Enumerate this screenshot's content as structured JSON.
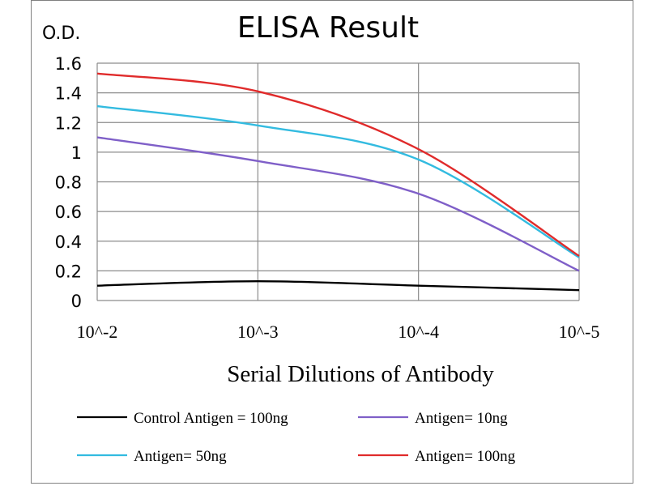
{
  "chart_data": {
    "type": "line",
    "title": "ELISA Result",
    "ylabel": "O.D.",
    "xlabel": "Serial Dilutions  of Antibody",
    "categories": [
      "10^-2",
      "10^-3",
      "10^-4",
      "10^-5"
    ],
    "ylim": [
      0,
      1.6
    ],
    "yticks": [
      0,
      0.2,
      0.4,
      0.6,
      0.8,
      1,
      1.2,
      1.4,
      1.6
    ],
    "ytick_labels": [
      "0",
      "0.2",
      "0.4",
      "0.6",
      "0.8",
      "1",
      "1.2",
      "1.4",
      "1.6"
    ],
    "grid": true,
    "legend_position": "bottom",
    "series": [
      {
        "name": "Control Antigen = 100ng",
        "color": "#000000",
        "values": [
          0.1,
          0.13,
          0.1,
          0.07
        ]
      },
      {
        "name": "Antigen= 10ng",
        "color": "#7f5fc8",
        "values": [
          1.1,
          0.94,
          0.72,
          0.2
        ]
      },
      {
        "name": "Antigen= 50ng",
        "color": "#33bbe0",
        "values": [
          1.31,
          1.18,
          0.95,
          0.29
        ]
      },
      {
        "name": "Antigen= 100ng",
        "color": "#e02b2b",
        "values": [
          1.53,
          1.41,
          1.02,
          0.3
        ]
      }
    ]
  }
}
